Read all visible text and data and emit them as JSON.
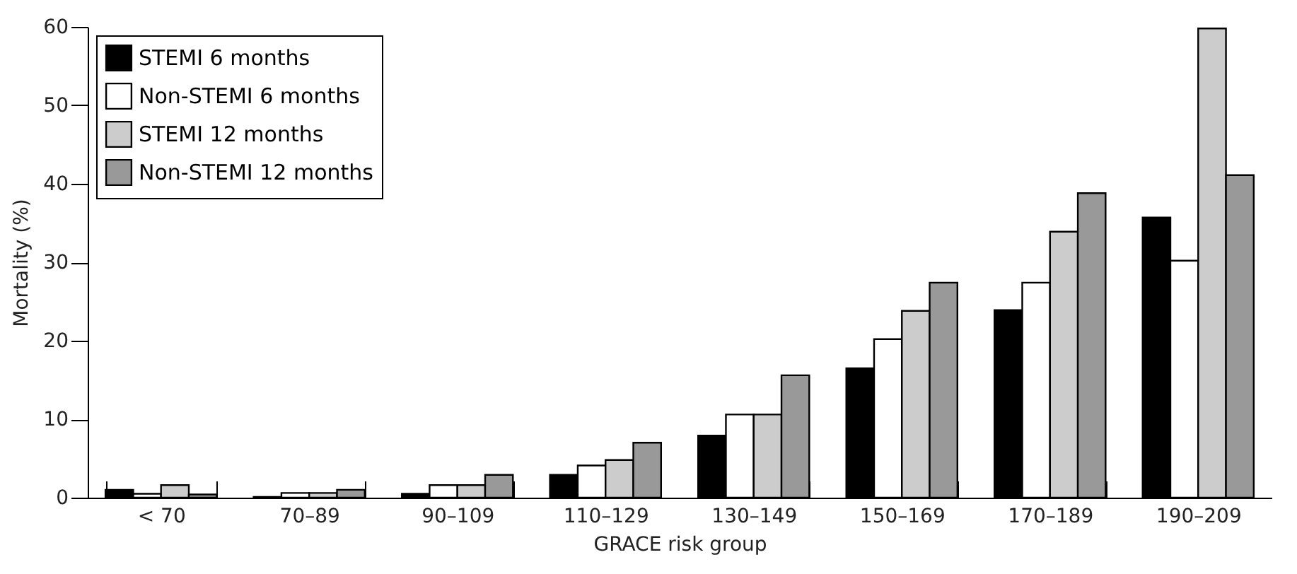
{
  "chart_data": {
    "type": "bar",
    "xlabel": "GRACE risk group",
    "ylabel": "Mortality (%)",
    "categories": [
      "< 70",
      "70–89",
      "90–109",
      "110–129",
      "130–149",
      "150–169",
      "170–189",
      "190–209"
    ],
    "series": [
      {
        "name": "STEMI 6 months",
        "color": "#000000",
        "values": [
          1.0,
          0.1,
          0.5,
          2.9,
          7.9,
          16.5,
          23.9,
          35.7
        ]
      },
      {
        "name": "Non-STEMI 6 months",
        "color": "#ffffff",
        "values": [
          0.5,
          0.6,
          1.6,
          4.1,
          10.6,
          20.2,
          27.4,
          30.2
        ]
      },
      {
        "name": "STEMI 12 months",
        "color": "#cccccc",
        "values": [
          1.6,
          0.6,
          1.6,
          4.8,
          10.6,
          23.8,
          33.9,
          59.8
        ]
      },
      {
        "name": "Non-STEMI 12 months",
        "color": "#999999",
        "values": [
          0.4,
          1.0,
          2.9,
          7.0,
          15.6,
          27.4,
          38.8,
          41.1
        ]
      }
    ],
    "ylim": [
      0,
      60
    ],
    "yticks": [
      0,
      10,
      20,
      30,
      40,
      50,
      60
    ],
    "grid": false,
    "legend": "top left"
  }
}
